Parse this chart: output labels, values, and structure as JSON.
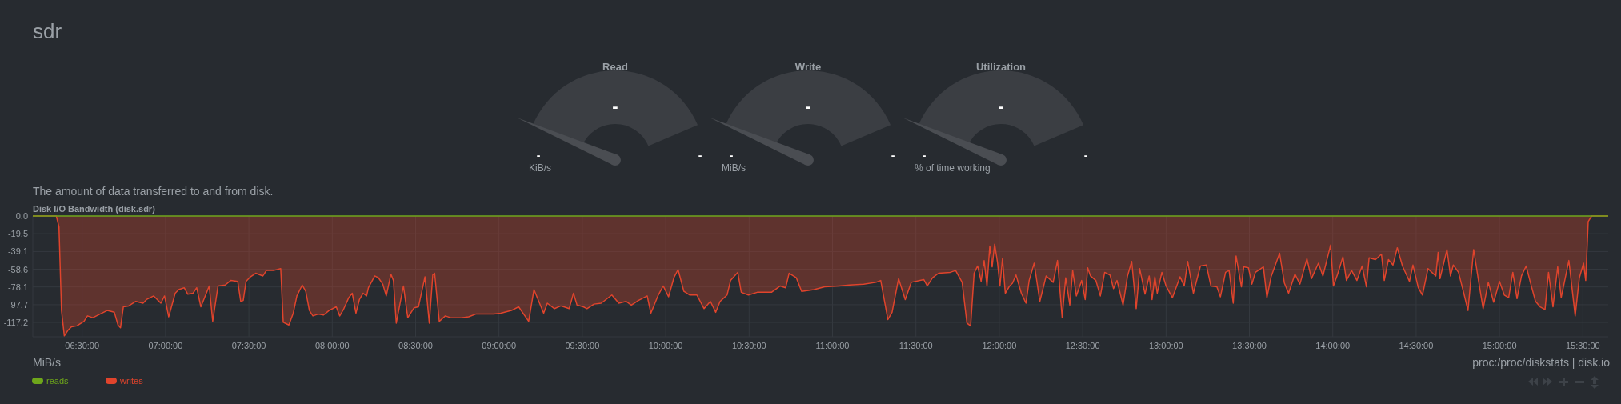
{
  "chart_data": [
    {
      "type": "other",
      "title": "Read",
      "subtitle": "KiB/s",
      "annotations": [
        "-",
        "-",
        "-"
      ]
    },
    {
      "type": "other",
      "title": "Write",
      "subtitle": "MiB/s",
      "annotations": [
        "-",
        "-",
        "-"
      ]
    },
    {
      "type": "other",
      "title": "Utilization",
      "subtitle": "% of time working",
      "annotations": [
        "-",
        "-",
        "-"
      ]
    },
    {
      "type": "area",
      "title": "Disk I/O Bandwidth (disk.sdr)",
      "subtitle": "The amount of data transferred to and from disk.",
      "annotations": [
        "sdr",
        "MiB/s",
        "proc:/proc/diskstats | disk.io",
        "-",
        "-"
      ],
      "xlim": [
        6.204,
        15.652
      ],
      "ylim": [
        -133,
        0
      ],
      "xticks": [
        {
          "value": 6.5,
          "label": "06:30:00"
        },
        {
          "value": 7,
          "label": "07:00:00"
        },
        {
          "value": 7.5,
          "label": "07:30:00"
        },
        {
          "value": 8,
          "label": "08:00:00"
        },
        {
          "value": 8.5,
          "label": "08:30:00"
        },
        {
          "value": 9,
          "label": "09:00:00"
        },
        {
          "value": 9.5,
          "label": "09:30:00"
        },
        {
          "value": 10,
          "label": "10:00:00"
        },
        {
          "value": 10.5,
          "label": "10:30:00"
        },
        {
          "value": 11,
          "label": "11:00:00"
        },
        {
          "value": 11.5,
          "label": "11:30:00"
        },
        {
          "value": 12,
          "label": "12:00:00"
        },
        {
          "value": 12.5,
          "label": "12:30:00"
        },
        {
          "value": 13,
          "label": "13:00:00"
        },
        {
          "value": 13.5,
          "label": "13:30:00"
        },
        {
          "value": 14,
          "label": "14:00:00"
        },
        {
          "value": 14.5,
          "label": "14:30:00"
        },
        {
          "value": 15,
          "label": "15:00:00"
        },
        {
          "value": 15.5,
          "label": "15:30:00"
        }
      ],
      "yticks": [
        {
          "value": 0,
          "label": "0.0"
        },
        -19.5,
        -39.1,
        -58.6,
        -78.1,
        -97.7,
        -117.2
      ],
      "grid": true,
      "legend": "bottom left",
      "series": [
        {
          "name": "reads",
          "type": "line",
          "color": "#6ea61b",
          "x": [
            6.204,
            15.652
          ],
          "values": [
            0,
            0
          ]
        },
        {
          "name": "writes",
          "color": "#e0442c",
          "x": [
            6.204,
            6.345,
            6.361,
            6.376,
            6.393,
            6.414,
            6.436,
            6.468,
            6.511,
            6.532,
            6.564,
            6.607,
            6.65,
            6.693,
            6.715,
            6.73,
            6.747,
            6.779,
            6.822,
            6.865,
            6.886,
            6.929,
            6.972,
            6.994,
            7.019,
            7.058,
            7.079,
            7.112,
            7.133,
            7.165,
            7.187,
            7.212,
            7.262,
            7.283,
            7.315,
            7.358,
            7.391,
            7.433,
            7.451,
            7.466,
            7.483,
            7.509,
            7.541,
            7.584,
            7.605,
            7.648,
            7.691,
            7.706,
            7.74,
            7.766,
            7.788,
            7.82,
            7.841,
            7.863,
            7.884,
            7.916,
            7.948,
            7.981,
            8.024,
            8.045,
            8.067,
            8.099,
            8.12,
            8.142,
            8.163,
            8.185,
            8.206,
            8.217,
            8.255,
            8.277,
            8.303,
            8.324,
            8.352,
            8.367,
            8.384,
            8.427,
            8.453,
            8.491,
            8.517,
            8.556,
            8.582,
            8.603,
            8.614,
            8.642,
            8.678,
            8.71,
            8.775,
            8.818,
            8.861,
            8.893,
            8.968,
            9.011,
            9.075,
            9.118,
            9.178,
            9.21,
            9.268,
            9.29,
            9.333,
            9.371,
            9.389,
            9.421,
            9.447,
            9.468,
            9.506,
            9.528,
            9.57,
            9.613,
            9.677,
            9.719,
            9.762,
            9.794,
            9.836,
            9.889,
            9.911,
            9.953,
            9.985,
            10.017,
            10.049,
            10.074,
            10.109,
            10.145,
            10.187,
            10.23,
            10.268,
            10.3,
            10.326,
            10.368,
            10.389,
            10.432,
            10.453,
            10.496,
            10.549,
            10.634,
            10.687,
            10.719,
            10.74,
            10.783,
            10.815,
            10.889,
            10.953,
            11.038,
            11.102,
            11.187,
            11.261,
            11.289,
            11.332,
            11.357,
            11.396,
            11.436,
            11.472,
            11.547,
            11.568,
            11.6,
            11.636,
            11.706,
            11.738,
            11.777,
            11.806,
            11.828,
            11.849,
            11.87,
            11.891,
            11.909,
            11.926,
            11.943,
            11.957,
            11.972,
            11.989,
            12.004,
            12.019,
            12.036,
            12.062,
            12.079,
            12.1,
            12.132,
            12.16,
            12.179,
            12.209,
            12.243,
            12.281,
            12.323,
            12.349,
            12.377,
            12.398,
            12.423,
            12.44,
            12.462,
            12.494,
            12.515,
            12.53,
            12.547,
            12.579,
            12.606,
            12.632,
            12.664,
            12.685,
            12.706,
            12.742,
            12.769,
            12.794,
            12.821,
            12.842,
            12.874,
            12.899,
            12.916,
            12.933,
            12.947,
            12.975,
            13,
            13.038,
            13.084,
            13.109,
            13.13,
            13.164,
            13.206,
            13.242,
            13.269,
            13.305,
            13.326,
            13.357,
            13.378,
            13.403,
            13.42,
            13.452,
            13.466,
            13.494,
            13.515,
            13.536,
            13.584,
            13.605,
            13.63,
            13.681,
            13.71,
            13.735,
            13.773,
            13.803,
            13.845,
            13.872,
            13.914,
            13.941,
            13.987,
            14.004,
            14.029,
            14.061,
            14.082,
            14.113,
            14.145,
            14.176,
            14.202,
            14.218,
            14.256,
            14.292,
            14.309,
            14.334,
            14.361,
            14.387,
            14.418,
            14.46,
            14.481,
            14.513,
            14.538,
            14.571,
            14.618,
            14.632,
            14.643,
            14.685,
            14.706,
            14.723,
            14.754,
            14.786,
            14.811,
            14.845,
            14.874,
            14.902,
            14.933,
            14.965,
            15,
            15.029,
            15.055,
            15.08,
            15.105,
            15.132,
            15.16,
            15.185,
            15.216,
            15.244,
            15.273,
            15.294,
            15.321,
            15.349,
            15.37,
            15.416,
            15.454,
            15.479,
            15.504,
            15.517,
            15.532,
            15.553,
            15.652
          ],
          "values": [
            0,
            0,
            -12,
            -104,
            -132,
            -126,
            -122,
            -121,
            -116,
            -110,
            -112,
            -108,
            -104,
            -106,
            -120,
            -123,
            -100,
            -99,
            -94,
            -96,
            -92,
            -88,
            -96,
            -88,
            -111,
            -85,
            -81,
            -79,
            -86,
            -85,
            -79,
            -100,
            -77,
            -116,
            -77,
            -76,
            -71,
            -72,
            -94,
            -93,
            -72,
            -67,
            -63,
            -66,
            -60,
            -60,
            -58,
            -117,
            -120,
            -107,
            -88,
            -76,
            -83,
            -104,
            -110,
            -108,
            -109,
            -104,
            -100,
            -110,
            -103,
            -90,
            -85,
            -107,
            -92,
            -85,
            -88,
            -79,
            -66,
            -68,
            -75,
            -88,
            -64,
            -71,
            -118,
            -77,
            -112,
            -101,
            -100,
            -67,
            -118,
            -65,
            -63,
            -116,
            -110,
            -112,
            -112,
            -111,
            -108,
            -108,
            -108,
            -107,
            -104,
            -100,
            -116,
            -81,
            -107,
            -96,
            -102,
            -99,
            -100,
            -102,
            -85,
            -98,
            -100,
            -102,
            -97,
            -96,
            -87,
            -96,
            -94,
            -98,
            -93,
            -88,
            -107,
            -88,
            -77,
            -89,
            -68,
            -59,
            -83,
            -87,
            -87,
            -102,
            -94,
            -106,
            -94,
            -87,
            -71,
            -62,
            -84,
            -87,
            -84,
            -84,
            -77,
            -79,
            -63,
            -68,
            -83,
            -81,
            -78,
            -77,
            -76,
            -75,
            -73,
            -71,
            -114,
            -106,
            -69,
            -92,
            -73,
            -70,
            -77,
            -68,
            -63,
            -62,
            -60,
            -73,
            -118,
            -121,
            -63,
            -55,
            -72,
            -49,
            -77,
            -33,
            -56,
            -31,
            -51,
            -77,
            -47,
            -85,
            -77,
            -74,
            -65,
            -85,
            -96,
            -71,
            -52,
            -94,
            -66,
            -73,
            -49,
            -112,
            -68,
            -98,
            -60,
            -88,
            -71,
            -92,
            -57,
            -66,
            -71,
            -88,
            -62,
            -65,
            -80,
            -71,
            -98,
            -66,
            -50,
            -102,
            -58,
            -86,
            -66,
            -92,
            -67,
            -85,
            -62,
            -77,
            -90,
            -67,
            -77,
            -50,
            -85,
            -55,
            -54,
            -77,
            -78,
            -89,
            -62,
            -60,
            -96,
            -44,
            -78,
            -56,
            -57,
            -75,
            -62,
            -56,
            -90,
            -67,
            -41,
            -74,
            -85,
            -64,
            -75,
            -47,
            -69,
            -52,
            -66,
            -32,
            -77,
            -64,
            -45,
            -71,
            -60,
            -71,
            -55,
            -78,
            -46,
            -48,
            -42,
            -71,
            -48,
            -54,
            -35,
            -55,
            -72,
            -54,
            -79,
            -87,
            -58,
            -66,
            -40,
            -69,
            -37,
            -66,
            -54,
            -62,
            -85,
            -104,
            -37,
            -71,
            -102,
            -73,
            -95,
            -72,
            -87,
            -90,
            -62,
            -91,
            -66,
            -55,
            -73,
            -94,
            -100,
            -103,
            -62,
            -100,
            -56,
            -90,
            -49,
            -110,
            -68,
            -52,
            -71,
            -6,
            0,
            0
          ]
        }
      ]
    }
  ]
}
